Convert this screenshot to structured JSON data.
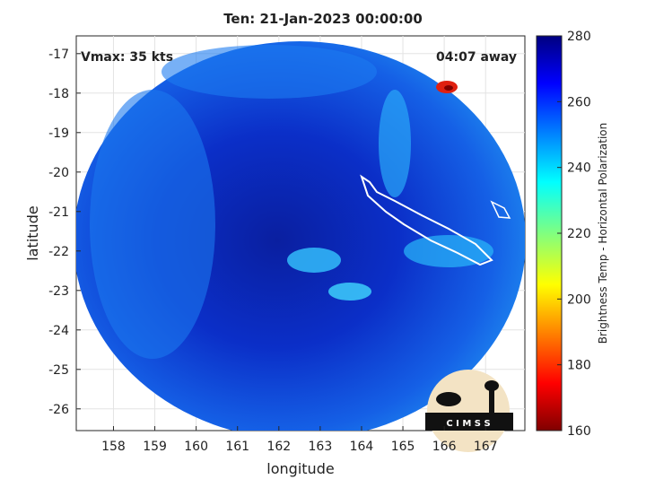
{
  "chart_data": {
    "type": "image",
    "title": "Ten: 21-Jan-2023 00:00:00",
    "x_label": "longitude",
    "y_label": "latitude",
    "annotations": {
      "left": "Vmax: 35 kts",
      "right": "04:07 away"
    },
    "xlim": [
      157.1,
      167.95
    ],
    "xticks": [
      158,
      159,
      160,
      161,
      162,
      163,
      164,
      165,
      166,
      167
    ],
    "ylim": [
      -26.55,
      -16.55
    ],
    "yticks": [
      -26,
      -25,
      -24,
      -23,
      -22,
      -21,
      -20,
      -19,
      -18,
      -17
    ],
    "grid": true,
    "colorbar": {
      "label": "Brightness Temp - Horizontal Polarization",
      "lim": [
        160,
        280
      ],
      "ticks": [
        160,
        180,
        200,
        220,
        240,
        260,
        280
      ]
    },
    "logo_text": "C I M S S"
  }
}
